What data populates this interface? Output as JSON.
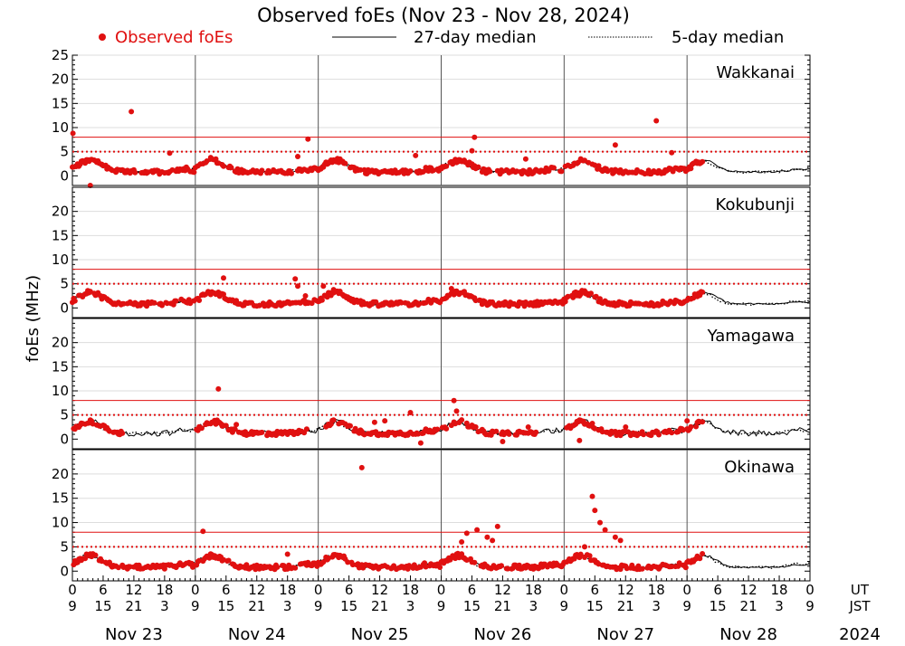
{
  "chart_data": {
    "type": "scatter",
    "title": "Observed foEs (Nov 23 - Nov 28, 2024)",
    "ylabel": "foEs (MHz)",
    "ylim": [
      -2,
      25
    ],
    "yticks_top": [
      0,
      5,
      10,
      15,
      20,
      25
    ],
    "yticks": [
      0,
      5,
      10,
      15,
      20
    ],
    "reference_lines": {
      "solid": 8,
      "dotted": 5
    },
    "legend": {
      "observed": "Observed foEs",
      "median27": "27-day median",
      "median5": "5-day median"
    },
    "x_ut_ticks": [
      "0",
      "6",
      "12",
      "18",
      "0",
      "6",
      "12",
      "18",
      "0",
      "6",
      "12",
      "18",
      "0",
      "6",
      "12",
      "18",
      "0",
      "6",
      "12",
      "18",
      "0",
      "6",
      "12",
      "18",
      "0"
    ],
    "x_jst_ticks": [
      "9",
      "15",
      "21",
      "3",
      "9",
      "15",
      "21",
      "3",
      "9",
      "15",
      "21",
      "3",
      "9",
      "15",
      "21",
      "3",
      "9",
      "15",
      "21",
      "3",
      "9",
      "15",
      "21",
      "3",
      "9"
    ],
    "ut_label": "UT",
    "jst_label": "JST",
    "days": [
      "Nov 23",
      "Nov 24",
      "Nov 25",
      "Nov 26",
      "Nov 27",
      "Nov 28"
    ],
    "year": "2024",
    "observed_until_hours": 123,
    "stations": [
      {
        "name": "Wakkanai",
        "outliers": [
          [
            0.1,
            8.8
          ],
          [
            3.5,
            -2.0
          ],
          [
            11.5,
            13.3
          ],
          [
            19,
            4.7
          ],
          [
            27,
            3.8
          ],
          [
            44,
            4.0
          ],
          [
            46,
            7.6
          ],
          [
            67,
            4.2
          ],
          [
            78.5,
            8.0
          ],
          [
            78,
            5.2
          ],
          [
            88.5,
            3.5
          ],
          [
            106,
            6.4
          ],
          [
            114,
            11.4
          ],
          [
            117,
            4.8
          ]
        ],
        "gaps": []
      },
      {
        "name": "Kokubunji",
        "outliers": [
          [
            29.5,
            6.2
          ],
          [
            43.5,
            6.0
          ],
          [
            44,
            4.5
          ],
          [
            45.5,
            2.5
          ],
          [
            49,
            4.5
          ],
          [
            51,
            3.8
          ],
          [
            74,
            4.0
          ],
          [
            75,
            3.5
          ],
          [
            99,
            2.5
          ]
        ],
        "gaps": []
      },
      {
        "name": "Yamagawa",
        "outliers": [
          [
            28.5,
            10.4
          ],
          [
            32,
            3.0
          ],
          [
            59,
            3.5
          ],
          [
            61,
            3.8
          ],
          [
            66,
            5.5
          ],
          [
            68,
            -0.8
          ],
          [
            74.5,
            8.0
          ],
          [
            75,
            5.8
          ],
          [
            84,
            -0.5
          ],
          [
            89,
            2.5
          ],
          [
            99,
            -0.3
          ],
          [
            108,
            2.5
          ],
          [
            120,
            3.8
          ]
        ],
        "gaps": [
          [
            10,
            24
          ],
          [
            46,
            49
          ],
          [
            91,
            96
          ]
        ]
      },
      {
        "name": "Okinawa",
        "outliers": [
          [
            25.5,
            8.2
          ],
          [
            42,
            3.5
          ],
          [
            56.5,
            21.3
          ],
          [
            77,
            7.8
          ],
          [
            79,
            8.5
          ],
          [
            81,
            7.0
          ],
          [
            83,
            9.2
          ],
          [
            82,
            6.3
          ],
          [
            76,
            6.0
          ],
          [
            101.5,
            15.4
          ],
          [
            102,
            12.5
          ],
          [
            103,
            10.0
          ],
          [
            104,
            8.5
          ],
          [
            106,
            7.0
          ],
          [
            107,
            6.3
          ],
          [
            100,
            5.0
          ]
        ],
        "gaps": []
      }
    ]
  }
}
